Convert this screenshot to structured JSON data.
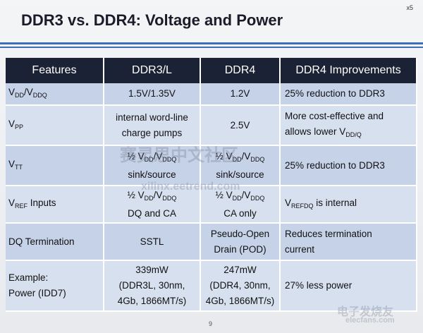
{
  "header": {
    "title": "DDR3 vs. DDR4: Voltage and Power",
    "slide_mark": "x5"
  },
  "table": {
    "header": [
      "Features",
      "DDR3/L",
      "DDR4",
      "DDR4 Improvements"
    ],
    "rows": [
      [
        [
          [
            "V",
            {
              "sub": "DD"
            },
            "/V",
            {
              "sub": "DDQ"
            }
          ]
        ],
        [
          [
            "1.5V/1.35V"
          ]
        ],
        [
          [
            "1.2V"
          ]
        ],
        [
          [
            "25% reduction to DDR3"
          ]
        ]
      ],
      [
        [
          [
            "V",
            {
              "sub": "PP"
            }
          ]
        ],
        [
          [
            "internal word-line"
          ],
          [
            "charge pumps"
          ]
        ],
        [
          [
            "2.5V"
          ]
        ],
        [
          [
            "More cost-effective and"
          ],
          [
            "allows lower V",
            {
              "sub": "DD/Q"
            }
          ]
        ]
      ],
      [
        [
          [
            "V",
            {
              "sub": "TT"
            }
          ]
        ],
        [
          [
            "½ V",
            {
              "sub": "DD"
            },
            "/V",
            {
              "sub": "DDQ"
            }
          ],
          [
            "sink/source"
          ]
        ],
        [
          [
            "½ V",
            {
              "sub": "DD"
            },
            "/V",
            {
              "sub": "DDQ"
            }
          ],
          [
            "sink/source"
          ]
        ],
        [
          [
            "25% reduction to DDR3"
          ]
        ]
      ],
      [
        [
          [
            "V",
            {
              "sub": "REF"
            },
            " Inputs"
          ]
        ],
        [
          [
            "½ V",
            {
              "sub": "DD"
            },
            "/V",
            {
              "sub": "DDQ"
            }
          ],
          [
            "DQ and CA"
          ]
        ],
        [
          [
            "½ V",
            {
              "sub": "DD"
            },
            "/V",
            {
              "sub": "DDQ"
            }
          ],
          [
            "CA only"
          ]
        ],
        [
          [
            "V",
            {
              "sub": "REFDQ"
            },
            " is internal"
          ]
        ]
      ],
      [
        [
          [
            "DQ Termination"
          ]
        ],
        [
          [
            "SSTL"
          ]
        ],
        [
          [
            "Pseudo-Open"
          ],
          [
            "Drain (POD)"
          ]
        ],
        [
          [
            "Reduces termination"
          ],
          [
            "current"
          ]
        ]
      ],
      [
        [
          [
            "Example:"
          ],
          [
            "Power (IDD7)"
          ]
        ],
        [
          [
            "339mW"
          ],
          [
            "(DDR3L, 30nm,"
          ],
          [
            "4Gb, 1866MT/s)"
          ]
        ],
        [
          [
            "247mW"
          ],
          [
            "(DDR4, 30nm,"
          ],
          [
            "4Gb, 1866MT/s)"
          ]
        ],
        [
          [
            "27% less power"
          ]
        ]
      ]
    ]
  },
  "footer": {
    "page_number": "9"
  },
  "watermarks": [
    "赛灵思中文社区",
    "xilinx.eetrend.com",
    "电子发烧友",
    "elecfans.com"
  ]
}
